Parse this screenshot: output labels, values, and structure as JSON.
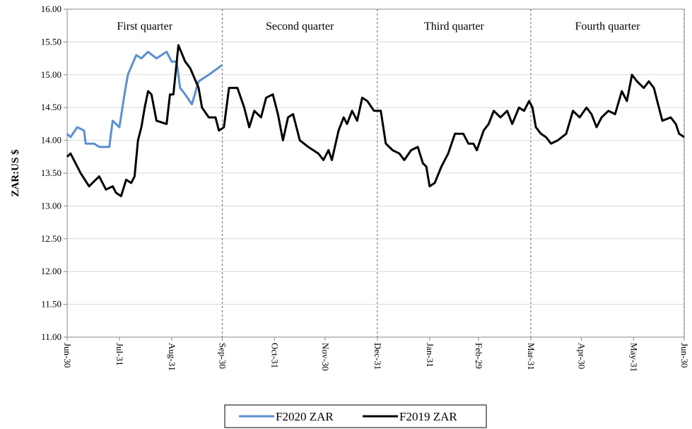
{
  "chart_data": {
    "type": "line",
    "ylabel": "ZAR:US $",
    "annotations": [
      "First quarter",
      "Second quarter",
      "Third quarter",
      "Fourth quarter"
    ],
    "quarter_bounds": [
      0,
      92,
      184,
      275,
      366
    ],
    "xlim": [
      0,
      366
    ],
    "xticks": [
      {
        "value": 0,
        "label": "Jun-30"
      },
      {
        "value": 31,
        "label": "Jul-31"
      },
      {
        "value": 62,
        "label": "Aug-31"
      },
      {
        "value": 92,
        "label": "Sep-30"
      },
      {
        "value": 123,
        "label": "Oct-31"
      },
      {
        "value": 153,
        "label": "Nov-30"
      },
      {
        "value": 184,
        "label": "Dec-31"
      },
      {
        "value": 215,
        "label": "Jan-31"
      },
      {
        "value": 244,
        "label": "Feb-29"
      },
      {
        "value": 275,
        "label": "Mar-31"
      },
      {
        "value": 305,
        "label": "Apr-30"
      },
      {
        "value": 336,
        "label": "May-31"
      },
      {
        "value": 366,
        "label": "Jun-30"
      }
    ],
    "ylim": [
      11,
      16
    ],
    "yticks": [
      {
        "value": 11,
        "label": "11.00"
      },
      {
        "value": 11.5,
        "label": "11.50"
      },
      {
        "value": 12,
        "label": "12.00"
      },
      {
        "value": 12.5,
        "label": "12.50"
      },
      {
        "value": 13,
        "label": "13.00"
      },
      {
        "value": 13.5,
        "label": "13.50"
      },
      {
        "value": 14,
        "label": "14.00"
      },
      {
        "value": 14.5,
        "label": "14.50"
      },
      {
        "value": 15,
        "label": "15.00"
      },
      {
        "value": 15.5,
        "label": "15.50"
      },
      {
        "value": 16,
        "label": "16.00"
      }
    ],
    "grid": true,
    "legend": "bottom",
    "series": [
      {
        "name": "F2020 ZAR",
        "color": "#5b8fd0",
        "x": [
          0,
          2,
          6,
          10,
          11,
          16,
          19,
          23,
          25,
          27,
          31,
          34,
          36,
          41,
          44,
          48,
          53,
          59,
          62,
          65,
          67,
          70,
          74,
          78,
          84,
          92
        ],
        "values": [
          14.1,
          14.05,
          14.2,
          14.15,
          13.95,
          13.95,
          13.9,
          13.9,
          13.9,
          14.3,
          14.2,
          14.7,
          15.0,
          15.3,
          15.25,
          15.35,
          15.25,
          15.35,
          15.2,
          15.2,
          14.8,
          14.7,
          14.55,
          14.9,
          15.0,
          15.15
        ]
      },
      {
        "name": "F2019 ZAR",
        "color": "#000000",
        "x": [
          0,
          2,
          8,
          13,
          19,
          23,
          27,
          29,
          32,
          35,
          38,
          40,
          42,
          44,
          46,
          48,
          50,
          53,
          59,
          61,
          63,
          66,
          70,
          73,
          78,
          80,
          84,
          88,
          90,
          93,
          96,
          101,
          105,
          108,
          111,
          115,
          118,
          122,
          125,
          128,
          131,
          134,
          138,
          143,
          149,
          152,
          155,
          157,
          161,
          164,
          166,
          169,
          172,
          175,
          178,
          182,
          186,
          189,
          193,
          197,
          200,
          204,
          208,
          211,
          213,
          215,
          218,
          222,
          226,
          230,
          235,
          238,
          241,
          243,
          247,
          250,
          253,
          257,
          261,
          264,
          268,
          271,
          274,
          276,
          278,
          281,
          284,
          287,
          291,
          296,
          300,
          304,
          308,
          311,
          314,
          317,
          321,
          325,
          329,
          332,
          335,
          338,
          342,
          345,
          348,
          351,
          353,
          358,
          361,
          363,
          366
        ],
        "values": [
          13.75,
          13.8,
          13.5,
          13.3,
          13.45,
          13.25,
          13.3,
          13.2,
          13.15,
          13.4,
          13.35,
          13.45,
          14.0,
          14.2,
          14.5,
          14.75,
          14.7,
          14.3,
          14.25,
          14.7,
          14.7,
          15.45,
          15.2,
          15.1,
          14.8,
          14.5,
          14.35,
          14.35,
          14.15,
          14.2,
          14.8,
          14.8,
          14.5,
          14.2,
          14.45,
          14.35,
          14.65,
          14.7,
          14.4,
          14.0,
          14.35,
          14.4,
          14.0,
          13.9,
          13.8,
          13.7,
          13.85,
          13.7,
          14.15,
          14.35,
          14.25,
          14.45,
          14.3,
          14.65,
          14.6,
          14.45,
          14.45,
          13.95,
          13.85,
          13.8,
          13.7,
          13.85,
          13.9,
          13.65,
          13.6,
          13.3,
          13.35,
          13.6,
          13.8,
          14.1,
          14.1,
          13.95,
          13.95,
          13.85,
          14.15,
          14.25,
          14.45,
          14.35,
          14.45,
          14.25,
          14.5,
          14.45,
          14.6,
          14.5,
          14.2,
          14.1,
          14.05,
          13.95,
          14.0,
          14.1,
          14.45,
          14.35,
          14.5,
          14.4,
          14.2,
          14.35,
          14.45,
          14.4,
          14.75,
          14.6,
          15.0,
          14.9,
          14.8,
          14.9,
          14.8,
          14.5,
          14.3,
          14.35,
          14.25,
          14.1,
          14.05
        ]
      }
    ]
  }
}
